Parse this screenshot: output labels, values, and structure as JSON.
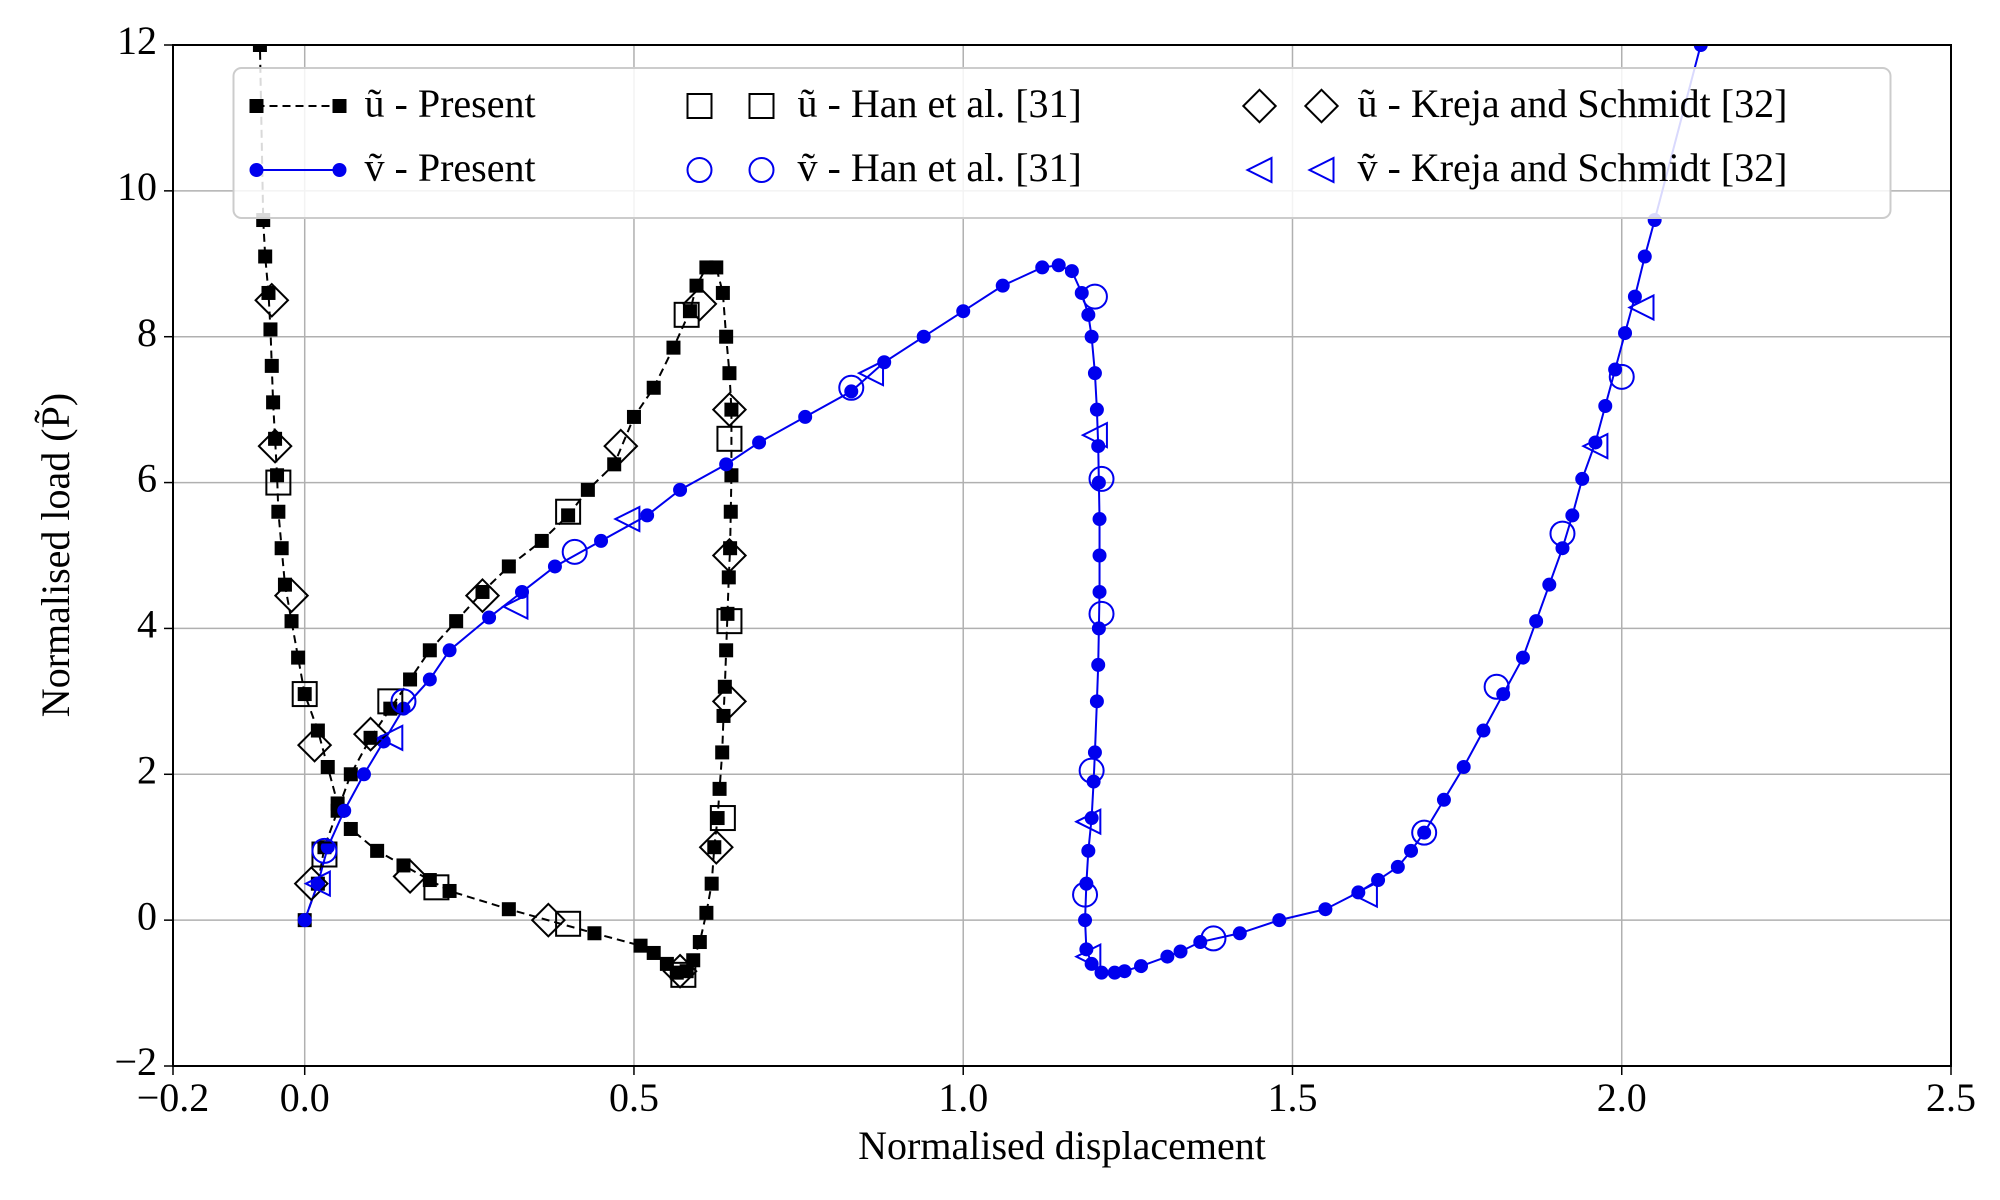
{
  "chart_data": {
    "type": "line",
    "xlabel": "Normalised displacement",
    "ylabel": "Normalised load (P̃)",
    "xlim": [
      -0.2,
      2.5
    ],
    "ylim": [
      -2,
      12
    ],
    "xticks": [
      {
        "value": -0.2,
        "label": "−0.2"
      },
      {
        "value": 0,
        "label": "0.0"
      },
      0.5,
      {
        "value": 1,
        "label": "1.0"
      },
      1.5,
      {
        "value": 2,
        "label": "2.0"
      },
      2.5
    ],
    "yticks": [
      {
        "value": -2,
        "label": "−2"
      },
      0,
      2,
      4,
      6,
      8,
      10,
      12
    ],
    "grid": true,
    "legend": "upper center",
    "series": [
      {
        "name": "ũ - Present",
        "color": "#000000",
        "linestyle": "dashed",
        "marker": "square",
        "filled": true,
        "x": [
          0,
          0.02,
          0.03,
          0.05,
          0.07,
          0.1,
          0.13,
          0.16,
          0.19,
          0.23,
          0.27,
          0.31,
          0.36,
          0.4,
          0.43,
          0.47,
          0.5,
          0.53,
          0.56,
          0.585,
          0.595,
          0.61,
          0.625,
          0.635,
          0.64,
          0.645,
          0.648,
          0.648,
          0.647,
          0.646,
          0.644,
          0.642,
          0.64,
          0.638,
          0.636,
          0.634,
          0.63,
          0.627,
          0.622,
          0.618,
          0.61,
          0.6,
          0.59,
          0.58,
          0.565,
          0.55,
          0.53,
          0.51,
          0.44,
          0.31,
          0.22,
          0.19,
          0.15,
          0.11,
          0.07,
          0.05,
          0.035,
          0.02,
          0,
          -0.01,
          -0.02,
          -0.03,
          -0.035,
          -0.04,
          -0.042,
          -0.045,
          -0.048,
          -0.05,
          -0.052,
          -0.055,
          -0.06,
          -0.063,
          -0.068
        ],
        "values": [
          0,
          0.5,
          1.0,
          1.5,
          2.0,
          2.5,
          2.9,
          3.3,
          3.7,
          4.1,
          4.5,
          4.85,
          5.2,
          5.55,
          5.9,
          6.25,
          6.9,
          7.3,
          7.85,
          8.35,
          8.7,
          8.95,
          8.95,
          8.6,
          8.0,
          7.5,
          7.0,
          6.1,
          5.6,
          5.1,
          4.7,
          4.2,
          3.7,
          3.2,
          2.8,
          2.3,
          1.8,
          1.4,
          1.0,
          0.5,
          0.1,
          -0.3,
          -0.55,
          -0.7,
          -0.72,
          -0.6,
          -0.45,
          -0.35,
          -0.18,
          0.15,
          0.4,
          0.55,
          0.75,
          0.95,
          1.25,
          1.6,
          2.1,
          2.6,
          3.1,
          3.6,
          4.1,
          4.6,
          5.1,
          5.6,
          6.1,
          6.6,
          7.1,
          7.6,
          8.1,
          8.6,
          9.1,
          9.6,
          12
        ]
      },
      {
        "name": "ṽ - Present",
        "color": "#0000ee",
        "linestyle": "solid",
        "marker": "circle",
        "filled": true,
        "x": [
          0,
          0.02,
          0.035,
          0.06,
          0.09,
          0.12,
          0.15,
          0.19,
          0.22,
          0.28,
          0.33,
          0.38,
          0.45,
          0.52,
          0.57,
          0.64,
          0.69,
          0.76,
          0.83,
          0.88,
          0.94,
          1.0,
          1.06,
          1.12,
          1.145,
          1.165,
          1.18,
          1.19,
          1.195,
          1.2,
          1.203,
          1.205,
          1.206,
          1.207,
          1.207,
          1.207,
          1.206,
          1.205,
          1.203,
          1.2,
          1.198,
          1.195,
          1.19,
          1.187,
          1.185,
          1.187,
          1.195,
          1.21,
          1.23,
          1.245,
          1.27,
          1.31,
          1.33,
          1.36,
          1.42,
          1.48,
          1.55,
          1.6,
          1.63,
          1.66,
          1.68,
          1.7,
          1.73,
          1.76,
          1.79,
          1.82,
          1.85,
          1.87,
          1.89,
          1.91,
          1.925,
          1.94,
          1.96,
          1.975,
          1.99,
          2.005,
          2.02,
          2.035,
          2.05,
          2.12
        ],
        "values": [
          0,
          0.5,
          1.0,
          1.5,
          2.0,
          2.45,
          2.9,
          3.3,
          3.7,
          4.15,
          4.5,
          4.85,
          5.2,
          5.55,
          5.9,
          6.25,
          6.55,
          6.9,
          7.25,
          7.65,
          8.0,
          8.35,
          8.7,
          8.95,
          8.98,
          8.9,
          8.6,
          8.3,
          8.0,
          7.5,
          7.0,
          6.5,
          6.0,
          5.5,
          5.0,
          4.5,
          4.0,
          3.5,
          3.0,
          2.3,
          1.9,
          1.4,
          0.95,
          0.5,
          0.0,
          -0.4,
          -0.6,
          -0.72,
          -0.72,
          -0.7,
          -0.63,
          -0.5,
          -0.43,
          -0.3,
          -0.18,
          0.0,
          0.15,
          0.38,
          0.55,
          0.73,
          0.95,
          1.2,
          1.65,
          2.1,
          2.6,
          3.1,
          3.6,
          4.1,
          4.6,
          5.1,
          5.55,
          6.05,
          6.55,
          7.05,
          7.55,
          8.05,
          8.55,
          9.1,
          9.6,
          12
        ]
      },
      {
        "name": "ũ - Han et al. [31]",
        "color": "#000000",
        "linestyle": "none",
        "marker": "square",
        "filled": false,
        "x": [
          -0.04,
          0.0,
          0.03,
          0.13,
          0.4,
          0.58,
          0.645,
          0.645,
          0.635,
          0.575,
          0.4,
          0.2
        ],
        "values": [
          6.0,
          3.1,
          0.9,
          3.0,
          5.6,
          8.3,
          6.6,
          4.1,
          1.4,
          -0.75,
          -0.05,
          0.45
        ]
      },
      {
        "name": "ṽ - Han et al. [31]",
        "color": "#0000ee",
        "linestyle": "none",
        "marker": "circle",
        "filled": false,
        "x": [
          0.03,
          0.15,
          0.41,
          0.83,
          1.2,
          1.21,
          1.21,
          1.195,
          1.185,
          1.38,
          1.7,
          1.81,
          1.91,
          2.0
        ],
        "values": [
          0.95,
          3.0,
          5.05,
          7.3,
          8.55,
          6.05,
          4.2,
          2.05,
          0.35,
          -0.25,
          1.2,
          3.2,
          5.3,
          7.45
        ]
      },
      {
        "name": "ũ - Kreja and Schmidt [32]",
        "color": "#000000",
        "linestyle": "none",
        "marker": "diamond",
        "filled": false,
        "x": [
          -0.05,
          -0.045,
          -0.02,
          0.015,
          0.01,
          0.1,
          0.27,
          0.48,
          0.6,
          0.645,
          0.645,
          0.645,
          0.625,
          0.57,
          0.37,
          0.16
        ],
        "values": [
          8.5,
          6.5,
          4.45,
          2.4,
          0.5,
          2.55,
          4.45,
          6.5,
          8.45,
          7.0,
          5.0,
          3.0,
          1.0,
          -0.7,
          0.0,
          0.6
        ]
      },
      {
        "name": "ṽ - Kreja and Schmidt [32]",
        "color": "#0000ee",
        "linestyle": "none",
        "marker": "triangle-left",
        "filled": false,
        "x": [
          0.02,
          0.13,
          0.32,
          0.49,
          0.86,
          1.2,
          1.19,
          1.19,
          1.61,
          1.96,
          2.03
        ],
        "values": [
          0.5,
          2.5,
          4.3,
          5.5,
          7.5,
          6.65,
          1.35,
          -0.5,
          0.35,
          6.5,
          8.4
        ]
      }
    ]
  }
}
